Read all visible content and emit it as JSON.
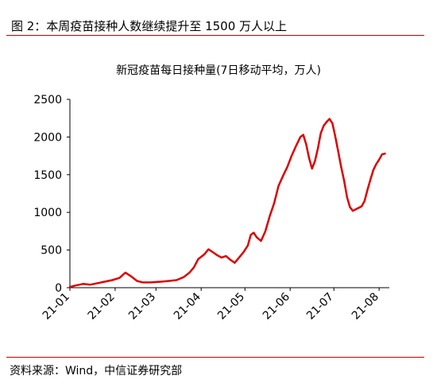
{
  "figure": {
    "title": "图 2：本周疫苗接种人数继续提升至 1500 万人以上",
    "source": "资料来源：Wind，中信证券研究部"
  },
  "chart_data": {
    "type": "line",
    "title": "新冠疫苗每日接种量(7日移动平均，万人)",
    "xlabel": "",
    "ylabel": "",
    "ylim": [
      0,
      2500
    ],
    "yticks": [
      0,
      500,
      1000,
      1500,
      2000,
      2500
    ],
    "xlim": [
      "2021-01-01",
      "2021-08-08"
    ],
    "xticks": [
      {
        "label": "21-01",
        "date": "2021-01-01"
      },
      {
        "label": "21-02",
        "date": "2021-02-01"
      },
      {
        "label": "21-03",
        "date": "2021-03-01"
      },
      {
        "label": "21-04",
        "date": "2021-04-01"
      },
      {
        "label": "21-05",
        "date": "2021-05-01"
      },
      {
        "label": "21-06",
        "date": "2021-06-01"
      },
      {
        "label": "21-07",
        "date": "2021-07-01"
      },
      {
        "label": "21-08",
        "date": "2021-08-01"
      }
    ],
    "grid": false,
    "legend": "none",
    "colors": {
      "line": "#dd0000",
      "axis": "#000000"
    },
    "series": [
      {
        "values": [
          [
            "2021-01-01",
            10
          ],
          [
            "2021-01-05",
            30
          ],
          [
            "2021-01-10",
            50
          ],
          [
            "2021-01-15",
            40
          ],
          [
            "2021-01-20",
            60
          ],
          [
            "2021-01-25",
            80
          ],
          [
            "2021-01-30",
            100
          ],
          [
            "2021-02-04",
            130
          ],
          [
            "2021-02-08",
            200
          ],
          [
            "2021-02-12",
            150
          ],
          [
            "2021-02-16",
            90
          ],
          [
            "2021-02-20",
            70
          ],
          [
            "2021-02-25",
            70
          ],
          [
            "2021-03-01",
            75
          ],
          [
            "2021-03-05",
            80
          ],
          [
            "2021-03-10",
            90
          ],
          [
            "2021-03-15",
            100
          ],
          [
            "2021-03-20",
            140
          ],
          [
            "2021-03-24",
            200
          ],
          [
            "2021-03-27",
            270
          ],
          [
            "2021-03-30",
            380
          ],
          [
            "2021-04-03",
            440
          ],
          [
            "2021-04-06",
            510
          ],
          [
            "2021-04-09",
            470
          ],
          [
            "2021-04-12",
            430
          ],
          [
            "2021-04-15",
            400
          ],
          [
            "2021-04-18",
            420
          ],
          [
            "2021-04-21",
            370
          ],
          [
            "2021-04-24",
            330
          ],
          [
            "2021-04-27",
            400
          ],
          [
            "2021-04-30",
            470
          ],
          [
            "2021-05-03",
            560
          ],
          [
            "2021-05-05",
            700
          ],
          [
            "2021-05-07",
            730
          ],
          [
            "2021-05-09",
            670
          ],
          [
            "2021-05-12",
            620
          ],
          [
            "2021-05-15",
            750
          ],
          [
            "2021-05-18",
            950
          ],
          [
            "2021-05-21",
            1120
          ],
          [
            "2021-05-24",
            1350
          ],
          [
            "2021-05-27",
            1480
          ],
          [
            "2021-05-30",
            1600
          ],
          [
            "2021-06-02",
            1750
          ],
          [
            "2021-06-05",
            1880
          ],
          [
            "2021-06-08",
            2000
          ],
          [
            "2021-06-10",
            2030
          ],
          [
            "2021-06-12",
            1900
          ],
          [
            "2021-06-14",
            1720
          ],
          [
            "2021-06-16",
            1580
          ],
          [
            "2021-06-18",
            1680
          ],
          [
            "2021-06-20",
            1850
          ],
          [
            "2021-06-22",
            2050
          ],
          [
            "2021-06-24",
            2150
          ],
          [
            "2021-06-26",
            2200
          ],
          [
            "2021-06-28",
            2240
          ],
          [
            "2021-06-30",
            2180
          ],
          [
            "2021-07-02",
            2000
          ],
          [
            "2021-07-04",
            1800
          ],
          [
            "2021-07-06",
            1600
          ],
          [
            "2021-07-08",
            1420
          ],
          [
            "2021-07-10",
            1200
          ],
          [
            "2021-07-12",
            1070
          ],
          [
            "2021-07-14",
            1020
          ],
          [
            "2021-07-16",
            1040
          ],
          [
            "2021-07-18",
            1060
          ],
          [
            "2021-07-20",
            1080
          ],
          [
            "2021-07-22",
            1150
          ],
          [
            "2021-07-24",
            1300
          ],
          [
            "2021-07-26",
            1430
          ],
          [
            "2021-07-28",
            1560
          ],
          [
            "2021-07-30",
            1640
          ],
          [
            "2021-08-01",
            1700
          ],
          [
            "2021-08-03",
            1770
          ],
          [
            "2021-08-05",
            1780
          ]
        ]
      }
    ]
  }
}
